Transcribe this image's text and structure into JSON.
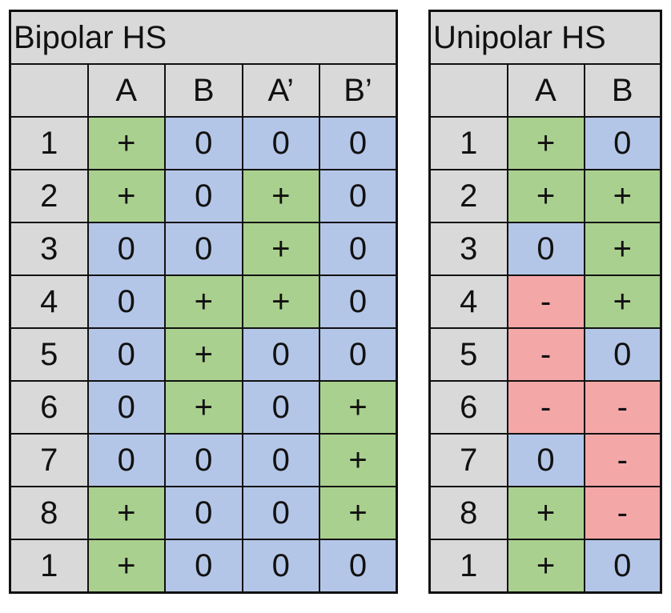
{
  "colors": {
    "plus": "#a9d08e",
    "zero": "#b4c6e7",
    "minus": "#f4a7a7",
    "header": "#d9d9d9"
  },
  "bipolar": {
    "title": "Bipolar HS",
    "columns": [
      "A",
      "B",
      "A’",
      "B’"
    ],
    "rows": [
      {
        "step": "1",
        "values": [
          "+",
          "0",
          "0",
          "0"
        ]
      },
      {
        "step": "2",
        "values": [
          "+",
          "0",
          "+",
          "0"
        ]
      },
      {
        "step": "3",
        "values": [
          "0",
          "0",
          "+",
          "0"
        ]
      },
      {
        "step": "4",
        "values": [
          "0",
          "+",
          "+",
          "0"
        ]
      },
      {
        "step": "5",
        "values": [
          "0",
          "+",
          "0",
          "0"
        ]
      },
      {
        "step": "6",
        "values": [
          "0",
          "+",
          "0",
          "+"
        ]
      },
      {
        "step": "7",
        "values": [
          "0",
          "0",
          "0",
          "+"
        ]
      },
      {
        "step": "8",
        "values": [
          "+",
          "0",
          "0",
          "+"
        ]
      },
      {
        "step": "1",
        "values": [
          "+",
          "0",
          "0",
          "0"
        ]
      }
    ]
  },
  "unipolar": {
    "title": "Unipolar HS",
    "columns": [
      "A",
      "B"
    ],
    "rows": [
      {
        "step": "1",
        "values": [
          "+",
          "0"
        ]
      },
      {
        "step": "2",
        "values": [
          "+",
          "+"
        ]
      },
      {
        "step": "3",
        "values": [
          "0",
          "+"
        ]
      },
      {
        "step": "4",
        "values": [
          "-",
          "+"
        ]
      },
      {
        "step": "5",
        "values": [
          "-",
          "0"
        ]
      },
      {
        "step": "6",
        "values": [
          "-",
          "-"
        ]
      },
      {
        "step": "7",
        "values": [
          "0",
          "-"
        ]
      },
      {
        "step": "8",
        "values": [
          "+",
          "-"
        ]
      },
      {
        "step": "1",
        "values": [
          "+",
          "0"
        ]
      }
    ]
  }
}
